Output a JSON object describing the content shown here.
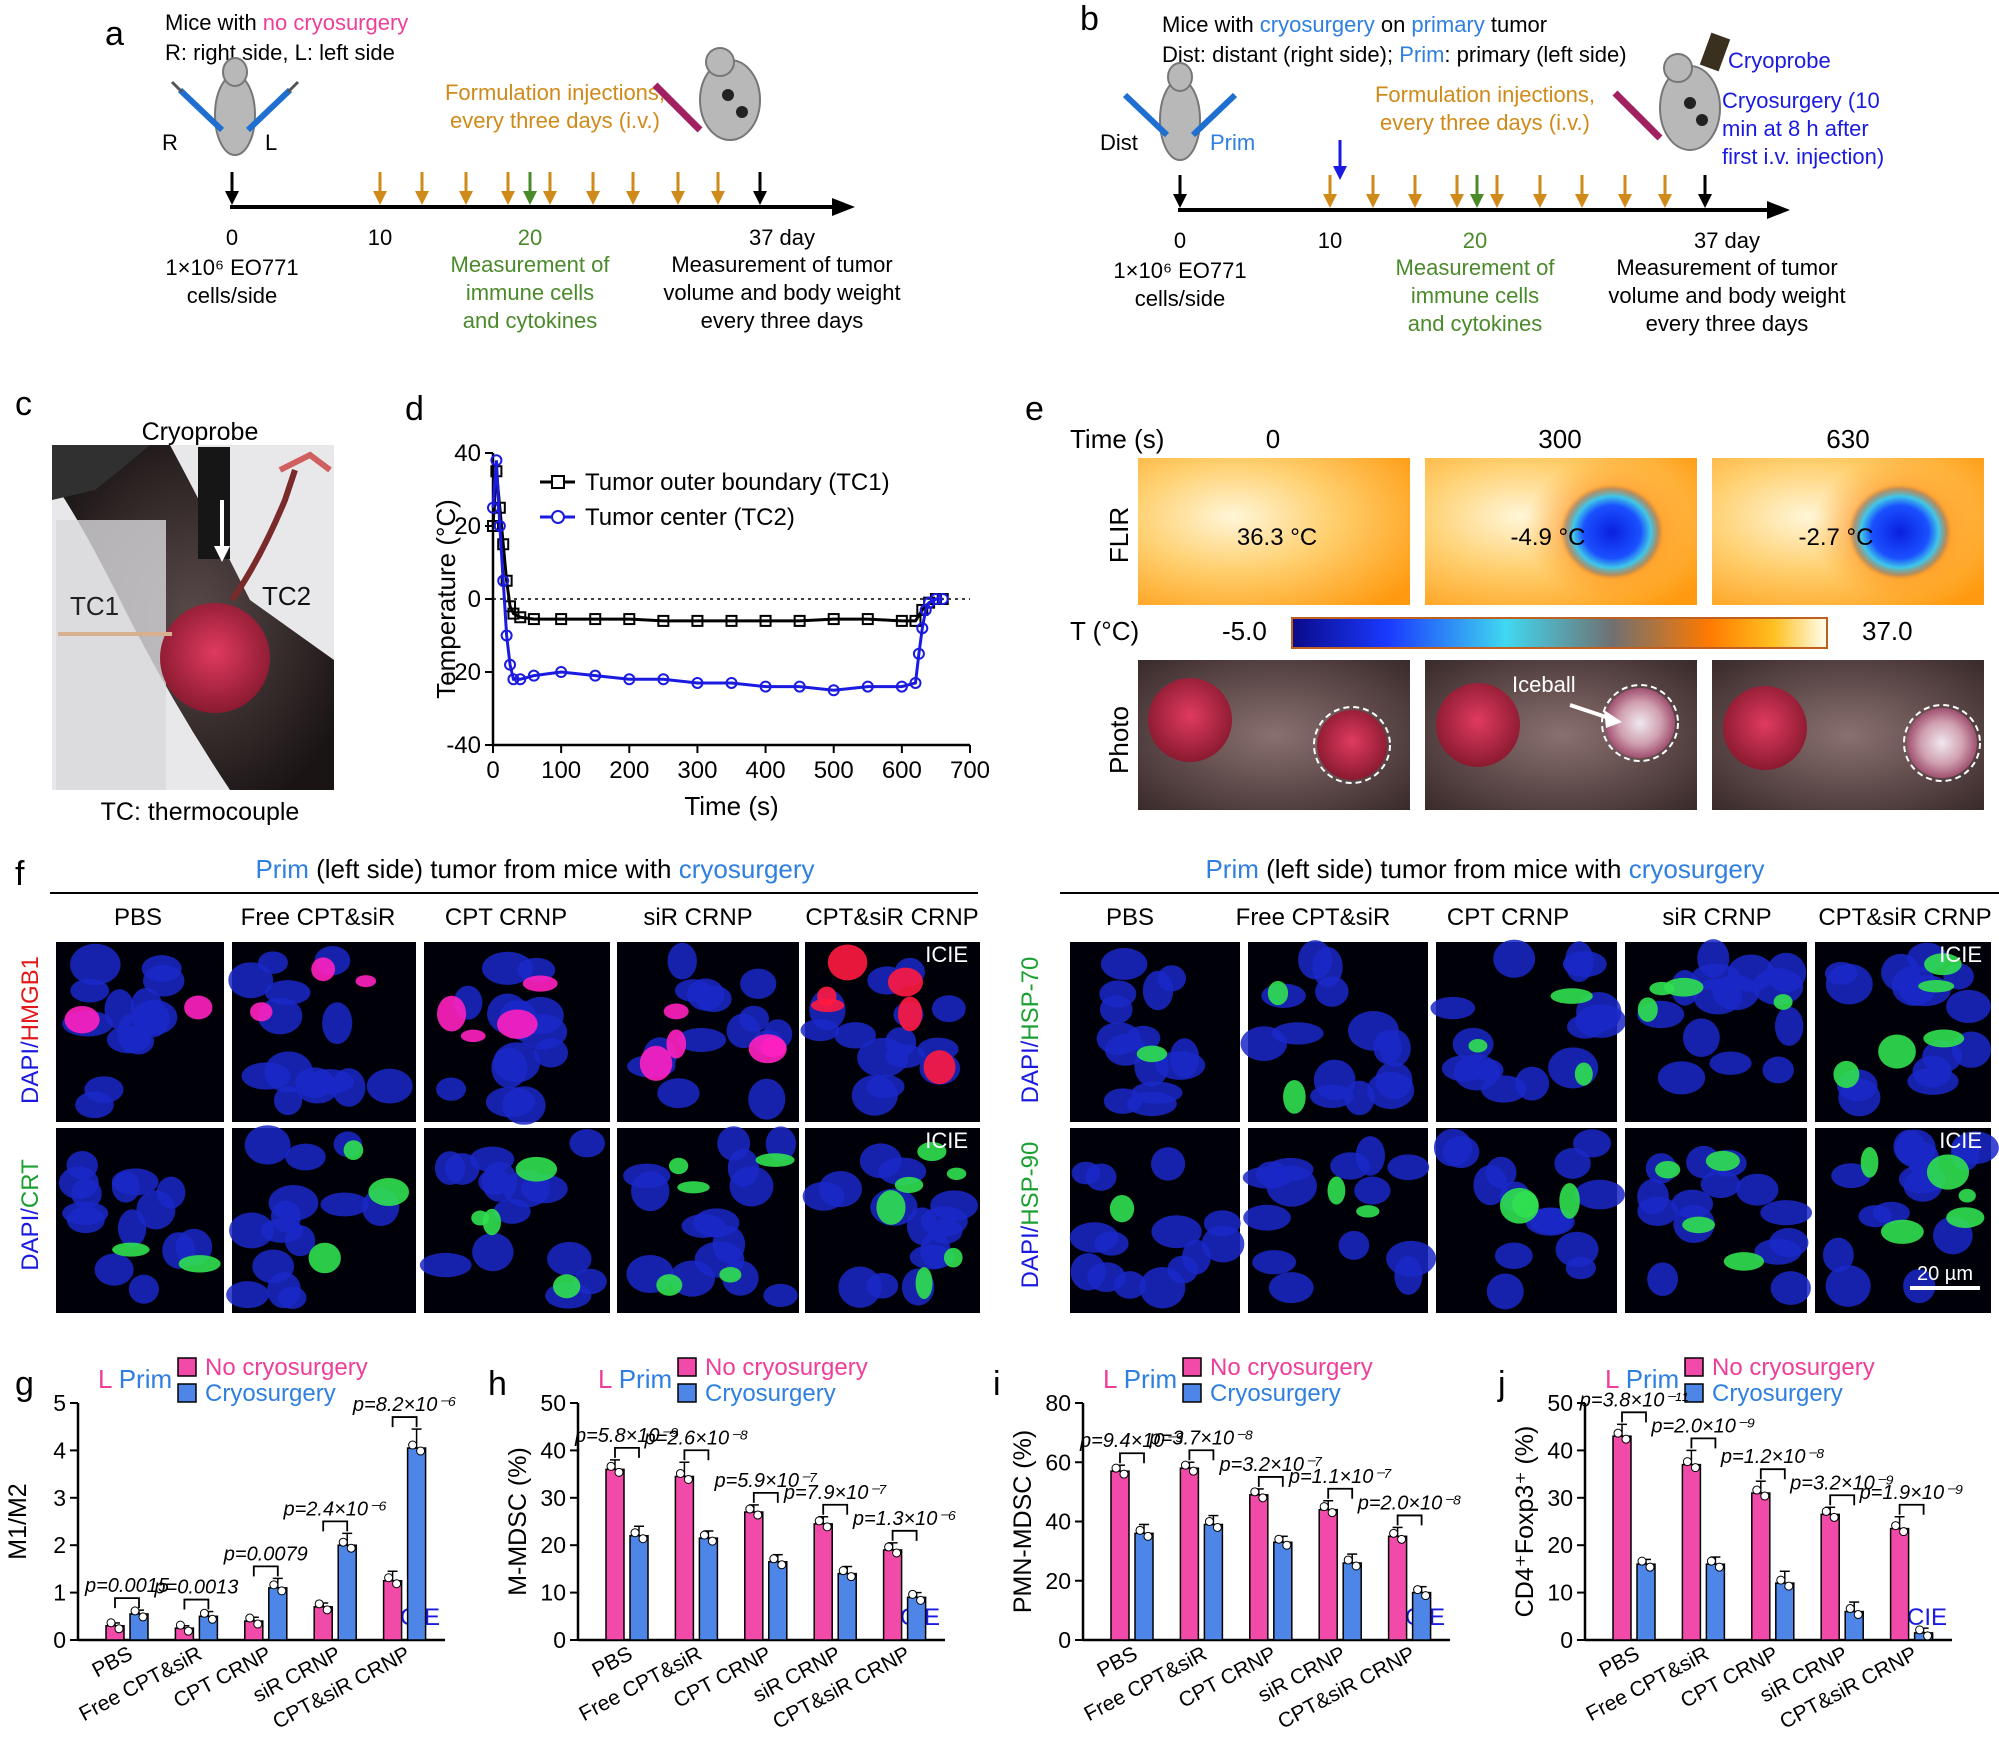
{
  "colors": {
    "magenta": "#ee3e9a",
    "blue_text": "#2e7fe0",
    "orange_text": "#d08a1a",
    "green_text": "#4a8a2a",
    "cryo_blue": "#1a1ae0",
    "bar_magenta": "#f24aa8",
    "bar_blue": "#4e86e8"
  },
  "panel_a": {
    "letter": "a",
    "line1_pre": "Mice with ",
    "line1_hl": "no cryosurgery",
    "line2": "R: right side, L: left side",
    "R": "R",
    "L": "L",
    "injection_line1": "Formulation injections,",
    "injection_line2": "every three days (i.v.)",
    "tick0": "0",
    "tick10": "10",
    "tick20": "20",
    "tick37": "37 day",
    "cells_line1": "1×10⁶ EO771",
    "cells_line2": "cells/side",
    "immune_line1": "Measurement of",
    "immune_line2": "immune cells",
    "immune_line3": "and cytokines",
    "tumor_line1": "Measurement of tumor",
    "tumor_line2": "volume and body weight",
    "tumor_line3": "every three days"
  },
  "panel_b": {
    "letter": "b",
    "line1_pre": "Mice with ",
    "line1_hl1": "cryosurgery",
    "line1_mid": " on ",
    "line1_hl2": "primary",
    "line1_post": " tumor",
    "line2_pre": "Dist: distant (right side); ",
    "line2_hl": "Prim",
    "line2_post": ": primary (left side)",
    "dist": "Dist",
    "prim": "Prim",
    "cryoprobe": "Cryoprobe",
    "cryo_line1": "Cryosurgery (10",
    "cryo_line2": "min at 8 h after",
    "cryo_line3": "first i.v. injection)",
    "injection_line1": "Formulation injections,",
    "injection_line2": "every three days (i.v.)",
    "tick0": "0",
    "tick10": "10",
    "tick20": "20",
    "tick37": "37 day",
    "cells_line1": "1×10⁶ EO771",
    "cells_line2": "cells/side",
    "immune_line1": "Measurement of",
    "immune_line2": "immune cells",
    "immune_line3": "and cytokines",
    "tumor_line1": "Measurement of tumor",
    "tumor_line2": "volume and body weight",
    "tumor_line3": "every three days"
  },
  "panel_c": {
    "letter": "c",
    "cryoprobe": "Cryoprobe",
    "tc1": "TC1",
    "tc2": "TC2",
    "caption": "TC: thermocouple"
  },
  "panel_e": {
    "letter": "e",
    "time_label": "Time (s)",
    "times": [
      "0",
      "300",
      "630"
    ],
    "flir": "FLIR",
    "temps": [
      "36.3 °C",
      "-4.9 °C",
      "-2.7 °C"
    ],
    "t_label": "T (°C)",
    "scale_min": "-5.0",
    "scale_max": "37.0",
    "photo": "Photo",
    "iceball": "Iceball"
  },
  "panel_f": {
    "letter": "f",
    "header_pre": "Prim",
    "header_mid": " (left side) tumor from mice with ",
    "header_post": "cryosurgery",
    "groups": [
      "PBS",
      "Free CPT&siR",
      "CPT CRNP",
      "siR CRNP",
      "CPT&siR CRNP"
    ],
    "row_left_top_a": "DAPI/",
    "row_left_top_b": "HMGB1",
    "row_left_bot_a": "DAPI/",
    "row_left_bot_b": "CRT",
    "row_right_top_a": "DAPI/",
    "row_right_top_b": "HSP-70",
    "row_right_bot_a": "DAPI/",
    "row_right_bot_b": "HSP-90",
    "icie": "ICIE",
    "scale_bar": "20 µm"
  },
  "chart_data": [
    {
      "type": "line",
      "panel": "d",
      "xlabel": "Time (s)",
      "ylabel": "Temperature (°C)",
      "xlim": [
        0,
        700
      ],
      "ylim": [
        -40,
        40
      ],
      "xticks": [
        0,
        100,
        200,
        300,
        400,
        500,
        600,
        700
      ],
      "yticks": [
        -40,
        -20,
        0,
        20,
        40
      ],
      "series": [
        {
          "name": "Tumor outer boundary (TC1)",
          "color": "#000000",
          "x": [
            0,
            5,
            10,
            15,
            20,
            25,
            30,
            40,
            60,
            100,
            150,
            200,
            250,
            300,
            350,
            400,
            450,
            500,
            550,
            600,
            620,
            630,
            640,
            650,
            660
          ],
          "y": [
            20,
            35,
            25,
            15,
            5,
            -2,
            -4,
            -5,
            -5.5,
            -5.5,
            -5.5,
            -5.5,
            -6,
            -6,
            -6,
            -6,
            -6,
            -5.5,
            -5.5,
            -6,
            -6,
            -3,
            -1,
            0,
            0
          ]
        },
        {
          "name": "Tumor center (TC2)",
          "color": "#1a1ae0",
          "x": [
            0,
            5,
            10,
            15,
            20,
            25,
            30,
            40,
            60,
            100,
            150,
            200,
            250,
            300,
            350,
            400,
            450,
            500,
            550,
            600,
            620,
            625,
            630,
            635,
            640,
            650,
            660
          ],
          "y": [
            25,
            38,
            20,
            5,
            -10,
            -18,
            -22,
            -22,
            -21,
            -20,
            -21,
            -22,
            -22,
            -23,
            -23,
            -24,
            -24,
            -25,
            -24,
            -24,
            -23,
            -15,
            -8,
            -3,
            -1,
            0,
            0
          ]
        }
      ]
    },
    {
      "type": "bar",
      "panel": "g",
      "title_l": "L",
      "title_prim": "Prim",
      "ylabel": "M1/M2",
      "ylim": [
        0,
        5
      ],
      "yticks": [
        0,
        1,
        2,
        3,
        4,
        5
      ],
      "categories": [
        "PBS",
        "Free CPT&siR",
        "CPT CRNP",
        "siR CRNP",
        "CPT&siR CRNP"
      ],
      "series": [
        {
          "name": "No cryosurgery",
          "values": [
            0.3,
            0.25,
            0.4,
            0.7,
            1.25
          ],
          "errors": [
            0.06,
            0.05,
            0.08,
            0.08,
            0.2
          ]
        },
        {
          "name": "Cryosurgery",
          "values": [
            0.55,
            0.5,
            1.1,
            2.0,
            4.05
          ],
          "errors": [
            0.08,
            0.1,
            0.2,
            0.25,
            0.4
          ]
        }
      ],
      "pvalues": [
        "p=0.0015",
        "p=0.0013",
        "p=0.0079",
        "p=2.4×10⁻⁶",
        "p=8.2×10⁻⁶"
      ],
      "icie": "ICIE"
    },
    {
      "type": "bar",
      "panel": "h",
      "title_l": "L",
      "title_prim": "Prim",
      "ylabel": "M-MDSC (%)",
      "ylim": [
        0,
        50
      ],
      "yticks": [
        0,
        10,
        20,
        30,
        40,
        50
      ],
      "categories": [
        "PBS",
        "Free CPT&siR",
        "CPT CRNP",
        "siR CRNP",
        "CPT&siR CRNP"
      ],
      "series": [
        {
          "name": "No cryosurgery",
          "values": [
            36,
            34.5,
            27,
            24.5,
            19
          ],
          "errors": [
            2,
            3,
            1.5,
            1.5,
            1.5
          ]
        },
        {
          "name": "Cryosurgery",
          "values": [
            22,
            21.5,
            16.5,
            14,
            9
          ],
          "errors": [
            2,
            1.5,
            1.5,
            1.5,
            1
          ]
        }
      ],
      "pvalues": [
        "p=5.8×10⁻⁹",
        "p=2.6×10⁻⁸",
        "p=5.9×10⁻⁷",
        "p=7.9×10⁻⁷",
        "p=1.3×10⁻⁶"
      ],
      "icie": "ICIE"
    },
    {
      "type": "bar",
      "panel": "i",
      "title_l": "L",
      "title_prim": "Prim",
      "ylabel": "PMN-MDSC (%)",
      "ylim": [
        0,
        80
      ],
      "yticks": [
        0,
        20,
        40,
        60,
        80
      ],
      "categories": [
        "PBS",
        "Free CPT&siR",
        "CPT CRNP",
        "siR CRNP",
        "CPT&siR CRNP"
      ],
      "series": [
        {
          "name": "No cryosurgery",
          "values": [
            57,
            58,
            49,
            44,
            35
          ],
          "errors": [
            2,
            2,
            2,
            3,
            3
          ]
        },
        {
          "name": "Cryosurgery",
          "values": [
            36,
            39,
            33,
            26,
            16
          ],
          "errors": [
            3,
            3,
            2,
            3,
            2
          ]
        }
      ],
      "pvalues": [
        "p=9.4×10⁻⁹",
        "p=3.7×10⁻⁸",
        "p=3.2×10⁻⁷",
        "p=1.1×10⁻⁷",
        "p=2.0×10⁻⁸"
      ],
      "icie": "ICIE"
    },
    {
      "type": "bar",
      "panel": "j",
      "title_l": "L",
      "title_prim": "Prim",
      "ylabel": "CD4⁺Foxp3⁺ (%)",
      "ylim": [
        0,
        50
      ],
      "yticks": [
        0,
        10,
        20,
        30,
        40,
        50
      ],
      "categories": [
        "PBS",
        "Free CPT&siR",
        "CPT CRNP",
        "siR CRNP",
        "CPT&siR CRNP"
      ],
      "series": [
        {
          "name": "No cryosurgery",
          "values": [
            43,
            37,
            31,
            26.5,
            23.5
          ],
          "errors": [
            2.5,
            3,
            2.5,
            1.5,
            2.5
          ]
        },
        {
          "name": "Cryosurgery",
          "values": [
            16,
            16,
            12,
            6,
            1.5
          ],
          "errors": [
            1,
            1.5,
            2.5,
            2,
            1
          ]
        }
      ],
      "pvalues": [
        "p=3.8×10⁻¹¹",
        "p=2.0×10⁻⁹",
        "p=1.2×10⁻⁸",
        "p=3.2×10⁻⁹",
        "p=1.9×10⁻⁹"
      ],
      "icie": "ICIE"
    }
  ]
}
